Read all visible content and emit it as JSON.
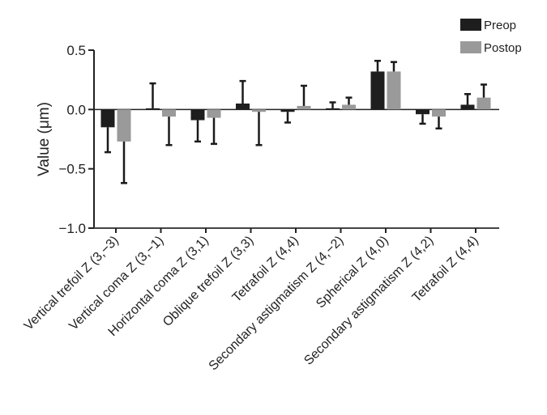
{
  "chart_data": {
    "type": "bar",
    "title": "",
    "xlabel": "",
    "ylabel": "Value (μm)",
    "ylim": [
      -1.0,
      0.5
    ],
    "yticks": [
      "0.5",
      "0.0",
      "−0.5",
      "−1.0"
    ],
    "ytick_values": [
      0.5,
      0.0,
      -0.5,
      -1.0
    ],
    "grid": false,
    "legend_position": "top-right",
    "categories": [
      "Vertical trefoil Z (3,−3)",
      "Vertical coma Z (3,−1)",
      "Horizontal coma Z (3,1)",
      "Oblique trefoil Z (3,3)",
      "Tetrafoil Z (4,4)",
      "Secondary astigmatism Z (4,−2)",
      "Spherical Z (4,0)",
      "Secondary astigmatism Z (4,2)",
      "Tetrafoil Z (4,4)"
    ],
    "series": [
      {
        "name": "Preop",
        "color": "#1e1e1e",
        "values": [
          -0.15,
          0.01,
          -0.09,
          0.05,
          -0.02,
          0.01,
          0.32,
          -0.04,
          0.04
        ],
        "error": [
          0.21,
          0.21,
          0.18,
          0.19,
          0.09,
          0.05,
          0.09,
          0.08,
          0.09
        ]
      },
      {
        "name": "Postop",
        "color": "#9a9a9a",
        "values": [
          -0.27,
          -0.06,
          -0.07,
          -0.02,
          0.03,
          0.04,
          0.32,
          -0.06,
          0.1
        ],
        "error": [
          0.35,
          0.24,
          0.22,
          0.28,
          0.17,
          0.06,
          0.08,
          0.1,
          0.11
        ]
      }
    ]
  }
}
